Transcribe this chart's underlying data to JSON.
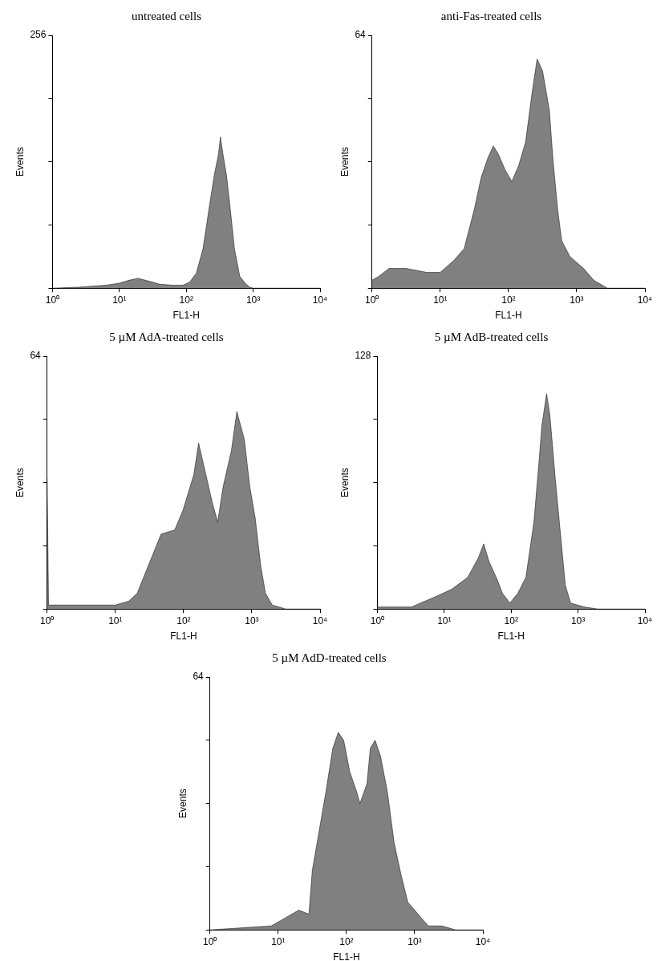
{
  "chart_data": [
    {
      "type": "area",
      "title": "untreated cells",
      "xlabel": "FL1-H",
      "ylabel": "Events",
      "log": "x",
      "grid": false,
      "xlim": [
        1,
        10000
      ],
      "xticks": [
        {
          "value": 1,
          "label": "10⁰"
        },
        {
          "value": 10,
          "label": "10¹"
        },
        {
          "value": 100,
          "label": "10²"
        },
        {
          "value": 1000,
          "label": "10³"
        },
        {
          "value": 10000,
          "label": "10⁴"
        }
      ],
      "ylim": [
        0,
        256
      ],
      "yticks": [
        0,
        {
          "value": 64,
          "label": null
        },
        {
          "value": 128,
          "label": null
        },
        {
          "value": 192,
          "label": null
        },
        256
      ],
      "series": [
        {
          "color": "#808080",
          "x": [
            1,
            2.5,
            4,
            6.3,
            10,
            14,
            19,
            28,
            40,
            63,
            89,
            112,
            141,
            178,
            224,
            263,
            302,
            324,
            355,
            398,
            447,
            525,
            631,
            759,
            891,
            1000,
            10000
          ],
          "values": [
            0,
            1,
            2,
            3,
            5,
            8,
            10,
            7,
            4,
            3,
            3,
            6,
            15,
            40,
            85,
            115,
            135,
            153,
            135,
            115,
            85,
            40,
            12,
            5,
            1,
            0,
            0
          ]
        }
      ]
    },
    {
      "type": "area",
      "title": "anti-Fas-treated cells",
      "xlabel": "FL1-H",
      "ylabel": "Events",
      "log": "x",
      "grid": false,
      "xlim": [
        1,
        10000
      ],
      "xticks": [
        {
          "value": 1,
          "label": "10⁰"
        },
        {
          "value": 10,
          "label": "10¹"
        },
        {
          "value": 100,
          "label": "10²"
        },
        {
          "value": 1000,
          "label": "10³"
        },
        {
          "value": 10000,
          "label": "10⁴"
        }
      ],
      "ylim": [
        0,
        64
      ],
      "yticks": [
        0,
        {
          "value": 16,
          "label": null
        },
        {
          "value": 32,
          "label": null
        },
        {
          "value": 48,
          "label": null
        },
        64
      ],
      "series": [
        {
          "color": "#808080",
          "x": [
            1,
            1.26,
            1.78,
            3.16,
            6.3,
            10,
            15.8,
            22.4,
            31.6,
            39.8,
            50,
            60,
            70.8,
            89,
            112,
            141,
            178,
            224,
            263,
            316,
            398,
            447,
            525,
            603,
            794,
            1259,
            1778,
            2818,
            10000
          ],
          "values": [
            2,
            3,
            5,
            5,
            4,
            4,
            7,
            10,
            20,
            28,
            33,
            36,
            34,
            30,
            27,
            31,
            37,
            50,
            58,
            55,
            45,
            33,
            20,
            12,
            8,
            5,
            2,
            0,
            0
          ]
        }
      ]
    },
    {
      "type": "area",
      "title": "5 µM AdA-treated cells",
      "xlabel": "FL1-H",
      "ylabel": "Events",
      "log": "x",
      "grid": false,
      "xlim": [
        1,
        10000
      ],
      "xticks": [
        {
          "value": 1,
          "label": "10⁰"
        },
        {
          "value": 10,
          "label": "10¹"
        },
        {
          "value": 100,
          "label": "10²"
        },
        {
          "value": 1000,
          "label": "10³"
        },
        {
          "value": 10000,
          "label": "10⁴"
        }
      ],
      "ylim": [
        0,
        64
      ],
      "yticks": [
        0,
        {
          "value": 16,
          "label": null
        },
        {
          "value": 32,
          "label": null
        },
        {
          "value": 48,
          "label": null
        },
        64
      ],
      "series": [
        {
          "color": "#808080",
          "x": [
            1,
            1.05,
            3.2,
            10,
            15.8,
            20.9,
            46.8,
            74,
            98,
            141,
            166,
            219,
            263,
            316,
            380,
            501,
            603,
            776,
            933,
            1122,
            1349,
            1585,
            1995,
            3162,
            10000
          ],
          "values": [
            33,
            1,
            1,
            1,
            2,
            4,
            19,
            20,
            25,
            34,
            42,
            33,
            27,
            22,
            31,
            40,
            50,
            43,
            31,
            23,
            11,
            4,
            1,
            0,
            0
          ]
        }
      ]
    },
    {
      "type": "area",
      "title": "5 µM AdB-treated cells",
      "xlabel": "FL1-H",
      "ylabel": "Events",
      "log": "x",
      "grid": false,
      "xlim": [
        1,
        10000
      ],
      "xticks": [
        {
          "value": 1,
          "label": "10⁰"
        },
        {
          "value": 10,
          "label": "10¹"
        },
        {
          "value": 100,
          "label": "10²"
        },
        {
          "value": 1000,
          "label": "10³"
        },
        {
          "value": 10000,
          "label": "10⁴"
        }
      ],
      "ylim": [
        0,
        128
      ],
      "yticks": [
        0,
        {
          "value": 32,
          "label": null
        },
        {
          "value": 64,
          "label": null
        },
        {
          "value": 96,
          "label": null
        },
        128
      ],
      "series": [
        {
          "color": "#808080",
          "x": [
            1,
            3.2,
            8.3,
            12.9,
            22.4,
            32.4,
            38.9,
            46.8,
            61.7,
            74.1,
            95.5,
            126,
            166,
            219,
            263,
            288,
            339,
            380,
            457,
            550,
            646,
            776,
            1259,
            1995,
            10000
          ],
          "values": [
            1,
            1,
            7,
            10,
            16,
            26,
            33,
            24,
            15,
            8,
            3,
            8,
            16,
            44,
            76,
            93,
            109,
            98,
            66,
            37,
            12,
            3,
            1,
            0,
            0
          ]
        }
      ]
    },
    {
      "type": "area",
      "title": "5 µM AdD-treated cells",
      "xlabel": "FL1-H",
      "ylabel": "Events",
      "log": "x",
      "grid": false,
      "xlim": [
        1,
        10000
      ],
      "xticks": [
        {
          "value": 1,
          "label": "10⁰"
        },
        {
          "value": 10,
          "label": "10¹"
        },
        {
          "value": 100,
          "label": "10²"
        },
        {
          "value": 1000,
          "label": "10³"
        },
        {
          "value": 10000,
          "label": "10⁴"
        }
      ],
      "ylim": [
        0,
        64
      ],
      "yticks": [
        0,
        {
          "value": 16,
          "label": null
        },
        {
          "value": 32,
          "label": null
        },
        {
          "value": 48,
          "label": null
        },
        64
      ],
      "series": [
        {
          "color": "#808080",
          "x": [
            1,
            7.9,
            12.6,
            20,
            28.2,
            31.6,
            39.8,
            50.1,
            63.1,
            75.9,
            91.2,
            112,
            141,
            158,
            200,
            224,
            263,
            316,
            398,
            501,
            631,
            794,
            1000,
            1259,
            1585,
            2512,
            3981,
            10000
          ],
          "values": [
            0,
            1,
            3,
            5,
            4,
            15,
            25,
            35,
            46,
            50,
            48,
            40,
            35,
            32,
            37,
            46,
            48,
            44,
            35,
            22,
            14,
            7,
            5,
            3,
            1,
            1,
            0,
            0
          ]
        }
      ]
    }
  ]
}
